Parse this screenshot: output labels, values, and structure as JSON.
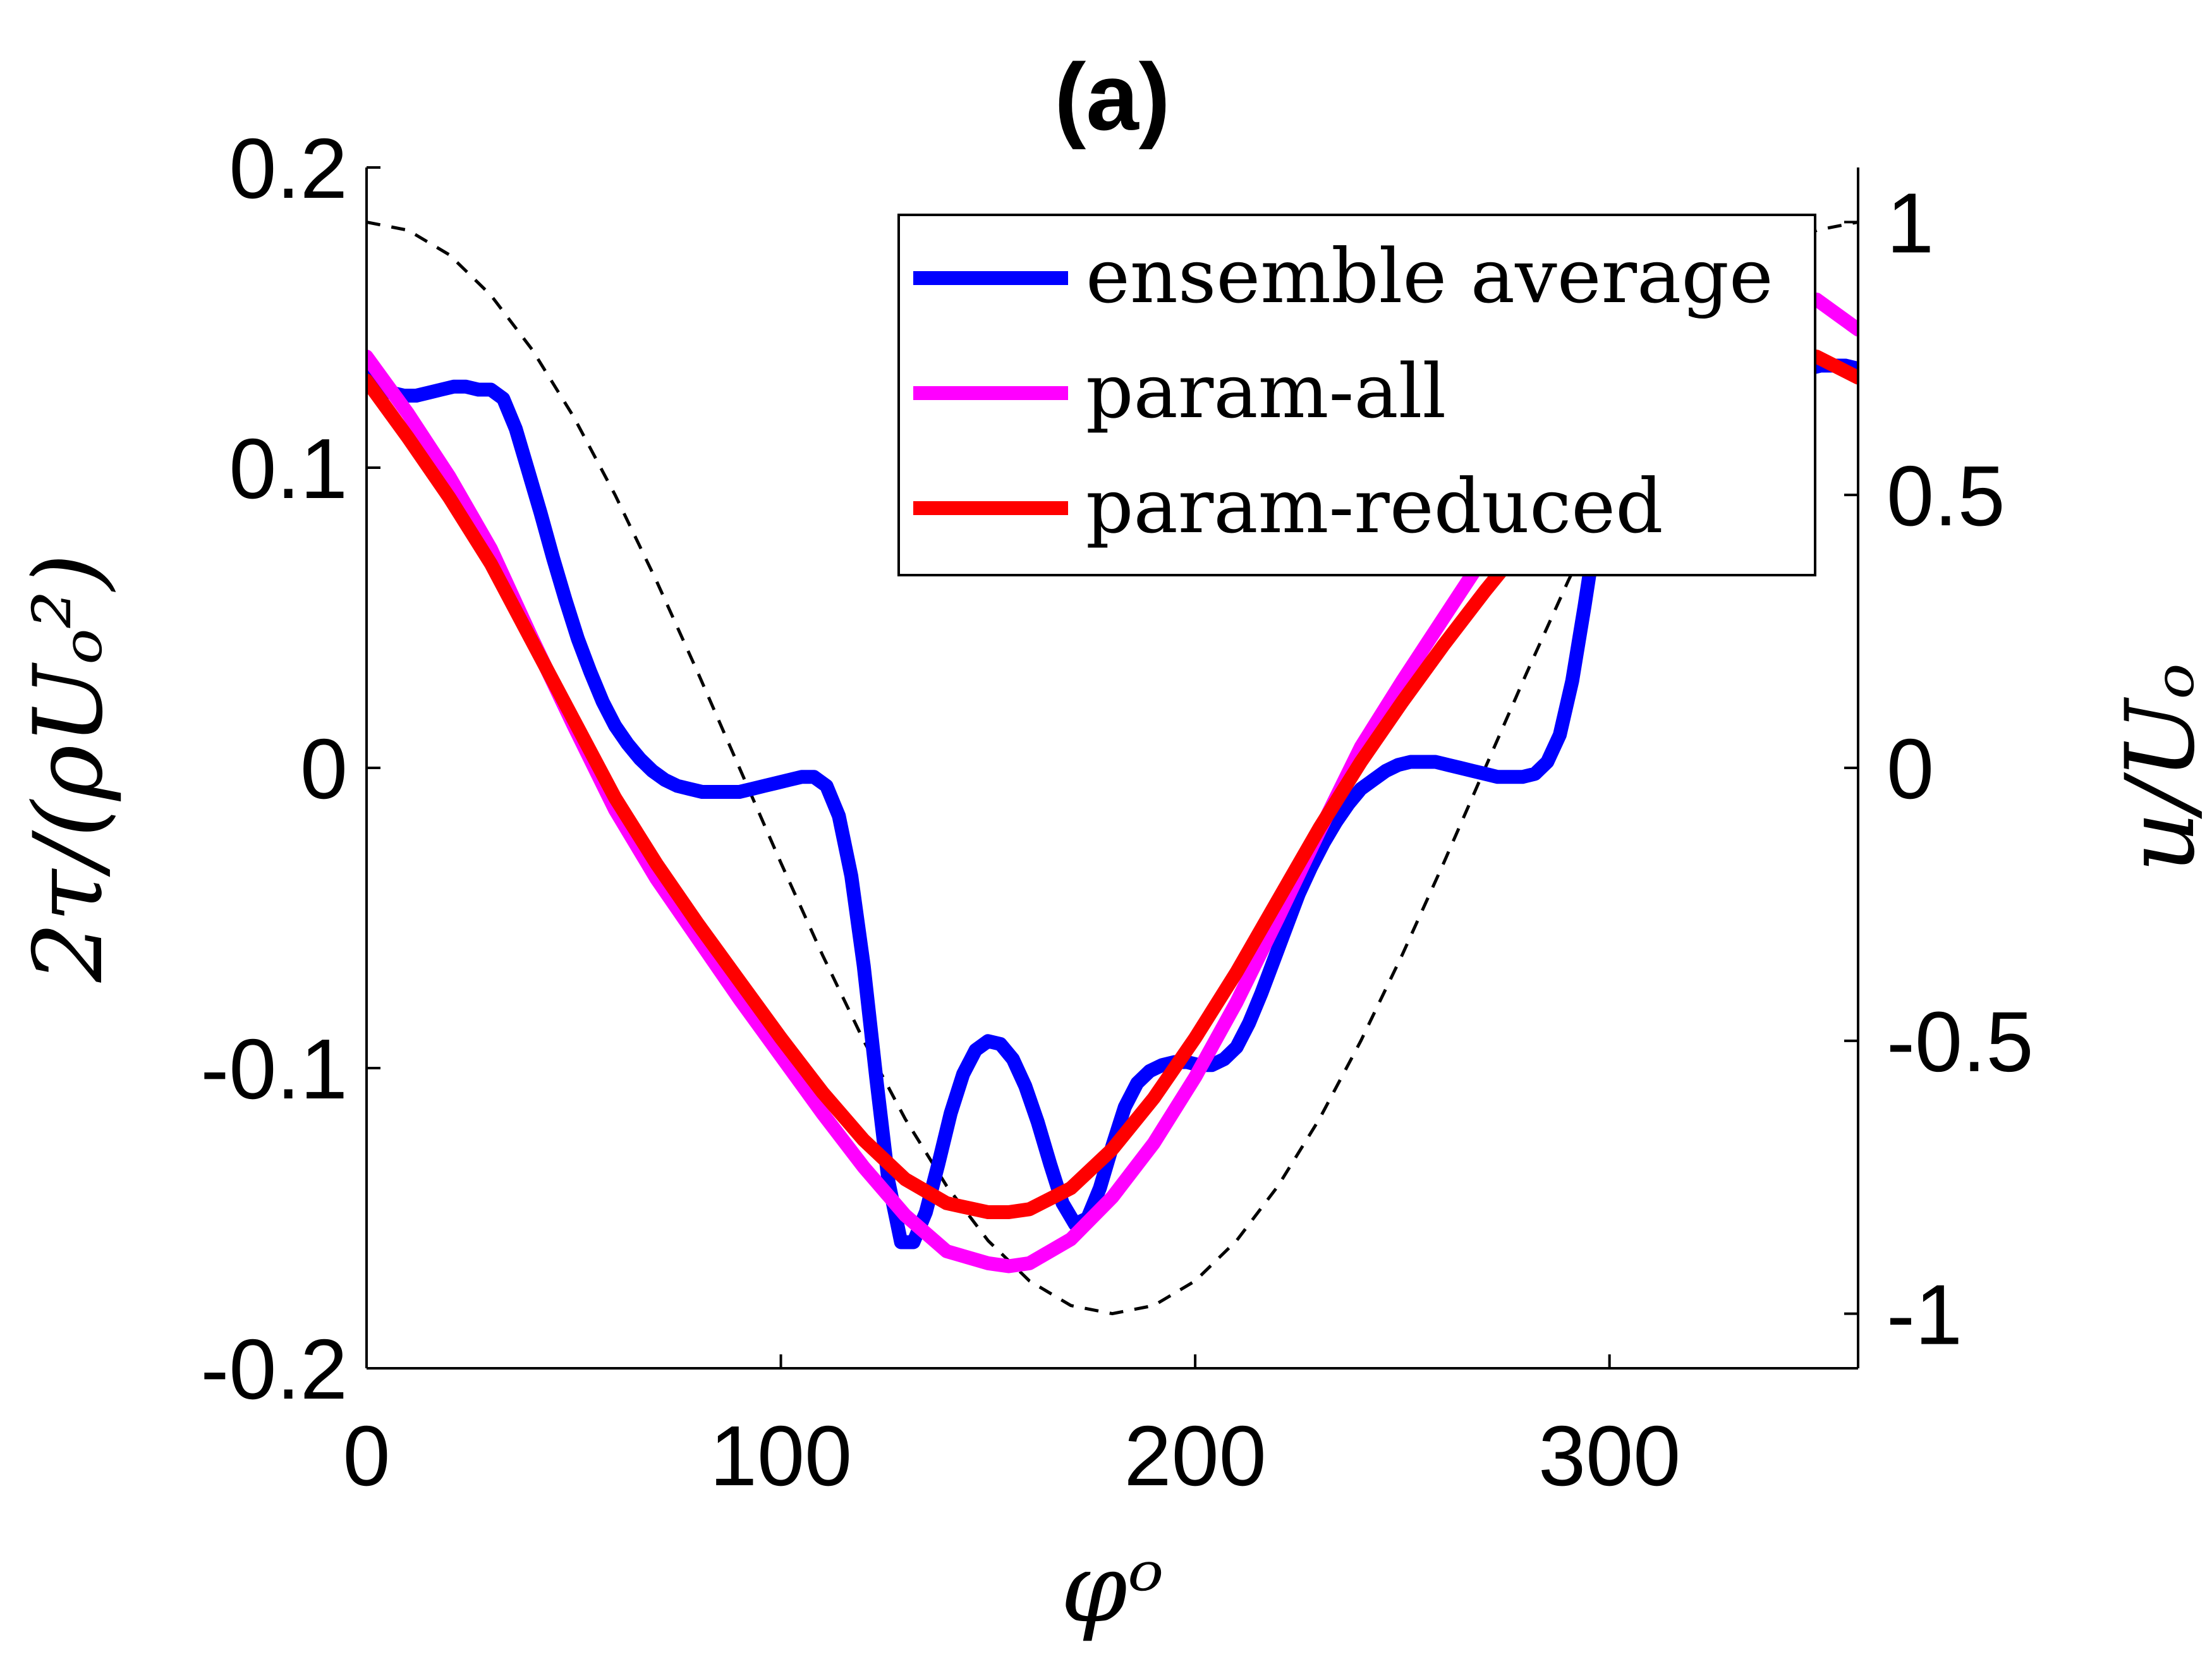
{
  "chart_data": {
    "type": "line",
    "title": "(a)",
    "xlabel": "φᵒ",
    "ylabel": "2τ/(ρUₒ²)",
    "ylabel_right": "u/Uₒ",
    "xlim": [
      0,
      360
    ],
    "ylim": [
      -0.2,
      0.2
    ],
    "ylim_right": [
      -1.1,
      1.1
    ],
    "xticks": [
      0,
      100,
      200,
      300
    ],
    "xtick_labels": [
      "0",
      "100",
      "200",
      "300"
    ],
    "yticks": [
      -0.2,
      -0.1,
      0,
      0.1,
      0.2
    ],
    "ytick_labels": [
      "-0.2",
      "-0.1",
      "0",
      "0.1",
      "0.2"
    ],
    "yticks_right": [
      -1,
      -0.5,
      0,
      0.5,
      1
    ],
    "ytick_labels_right": [
      "-1",
      "-0.5",
      "0",
      "0.5",
      "1"
    ],
    "grid": false,
    "legend_position": "top-right",
    "series": [
      {
        "name": "ensemble average",
        "color": "#0000ff",
        "axis": "left",
        "x": [
          0,
          3,
          6,
          9,
          12,
          15,
          18,
          21,
          24,
          27,
          30,
          33,
          36,
          39,
          42,
          45,
          48,
          51,
          54,
          57,
          60,
          63,
          66,
          69,
          72,
          75,
          78,
          81,
          84,
          87,
          90,
          93,
          96,
          99,
          102,
          105,
          108,
          111,
          114,
          117,
          120,
          123,
          126,
          129,
          132,
          135,
          138,
          141,
          144,
          147,
          150,
          153,
          156,
          159,
          162,
          165,
          168,
          171,
          174,
          177,
          180,
          183,
          186,
          189,
          192,
          195,
          198,
          201,
          204,
          207,
          210,
          213,
          216,
          219,
          222,
          225,
          228,
          231,
          234,
          237,
          240,
          243,
          246,
          249,
          252,
          255,
          258,
          261,
          264,
          267,
          270,
          273,
          276,
          279,
          282,
          285,
          288,
          291,
          294,
          297,
          300,
          303,
          306,
          309,
          312,
          315,
          318,
          321,
          324,
          327,
          330,
          333,
          336,
          339,
          342,
          345,
          348,
          351,
          354,
          357,
          360
        ],
        "y": [
          0.133,
          0.129,
          0.125,
          0.124,
          0.124,
          0.125,
          0.126,
          0.127,
          0.127,
          0.126,
          0.126,
          0.123,
          0.113,
          0.099,
          0.085,
          0.07,
          0.056,
          0.043,
          0.032,
          0.022,
          0.014,
          0.008,
          0.003,
          -0.001,
          -0.004,
          -0.006,
          -0.007,
          -0.008,
          -0.008,
          -0.008,
          -0.008,
          -0.007,
          -0.006,
          -0.005,
          -0.004,
          -0.003,
          -0.003,
          -0.006,
          -0.016,
          -0.036,
          -0.066,
          -0.103,
          -0.138,
          -0.158,
          -0.158,
          -0.148,
          -0.132,
          -0.115,
          -0.102,
          -0.094,
          -0.091,
          -0.092,
          -0.097,
          -0.106,
          -0.118,
          -0.132,
          -0.145,
          -0.152,
          -0.15,
          -0.14,
          -0.126,
          -0.113,
          -0.105,
          -0.101,
          -0.099,
          -0.098,
          -0.098,
          -0.099,
          -0.099,
          -0.097,
          -0.093,
          -0.085,
          -0.075,
          -0.064,
          -0.053,
          -0.042,
          -0.033,
          -0.025,
          -0.018,
          -0.012,
          -0.007,
          -0.004,
          -0.001,
          0.001,
          0.002,
          0.002,
          0.002,
          0.001,
          0.0,
          -0.001,
          -0.002,
          -0.003,
          -0.003,
          -0.003,
          -0.002,
          0.002,
          0.011,
          0.029,
          0.054,
          0.081,
          0.101,
          0.112,
          0.117,
          0.122,
          0.127,
          0.13,
          0.132,
          0.133,
          0.133,
          0.133,
          0.133,
          0.132,
          0.132,
          0.132,
          0.132,
          0.133,
          0.133,
          0.134,
          0.134,
          0.134,
          0.133
        ]
      },
      {
        "name": "param-all",
        "color": "#ff00ff",
        "axis": "left",
        "x": [
          0,
          10,
          20,
          30,
          40,
          50,
          60,
          70,
          80,
          90,
          100,
          110,
          120,
          130,
          140,
          150,
          155,
          160,
          170,
          180,
          190,
          200,
          210,
          220,
          230,
          240,
          250,
          260,
          270,
          280,
          290,
          300,
          310,
          320,
          330,
          340,
          350,
          360
        ],
        "y": [
          0.137,
          0.118,
          0.097,
          0.073,
          0.043,
          0.014,
          -0.014,
          -0.037,
          -0.057,
          -0.077,
          -0.096,
          -0.115,
          -0.133,
          -0.149,
          -0.161,
          -0.165,
          -0.166,
          -0.165,
          -0.157,
          -0.143,
          -0.125,
          -0.103,
          -0.078,
          -0.05,
          -0.021,
          0.007,
          0.029,
          0.05,
          0.071,
          0.09,
          0.108,
          0.123,
          0.136,
          0.146,
          0.153,
          0.157,
          0.156,
          0.146
        ]
      },
      {
        "name": "param-reduced",
        "color": "#ff0000",
        "axis": "left",
        "x": [
          0,
          10,
          20,
          30,
          40,
          50,
          60,
          70,
          80,
          90,
          100,
          110,
          120,
          130,
          140,
          150,
          155,
          160,
          170,
          180,
          190,
          200,
          210,
          220,
          230,
          240,
          250,
          260,
          270,
          280,
          290,
          300,
          310,
          320,
          330,
          340,
          350,
          360
        ],
        "y": [
          0.129,
          0.11,
          0.09,
          0.068,
          0.042,
          0.016,
          -0.01,
          -0.032,
          -0.052,
          -0.071,
          -0.09,
          -0.108,
          -0.124,
          -0.137,
          -0.145,
          -0.148,
          -0.148,
          -0.147,
          -0.14,
          -0.127,
          -0.11,
          -0.09,
          -0.068,
          -0.044,
          -0.02,
          0.002,
          0.022,
          0.041,
          0.059,
          0.076,
          0.092,
          0.106,
          0.118,
          0.128,
          0.135,
          0.139,
          0.137,
          0.13
        ]
      },
      {
        "name": "",
        "color": "#000000",
        "axis": "right",
        "style": "dashed",
        "x": [
          0,
          10,
          20,
          30,
          40,
          50,
          60,
          70,
          80,
          90,
          100,
          110,
          120,
          130,
          140,
          150,
          160,
          170,
          180,
          190,
          200,
          210,
          220,
          230,
          240,
          250,
          260,
          270,
          280,
          290,
          300,
          310,
          320,
          330,
          340,
          350,
          360
        ],
        "y": [
          1.0,
          0.985,
          0.94,
          0.866,
          0.766,
          0.643,
          0.5,
          0.342,
          0.174,
          0.0,
          -0.174,
          -0.342,
          -0.5,
          -0.643,
          -0.766,
          -0.866,
          -0.94,
          -0.985,
          -1.0,
          -0.985,
          -0.94,
          -0.866,
          -0.766,
          -0.643,
          -0.5,
          -0.342,
          -0.174,
          0.0,
          0.174,
          0.342,
          0.5,
          0.643,
          0.766,
          0.866,
          0.94,
          0.985,
          1.0
        ]
      }
    ]
  }
}
